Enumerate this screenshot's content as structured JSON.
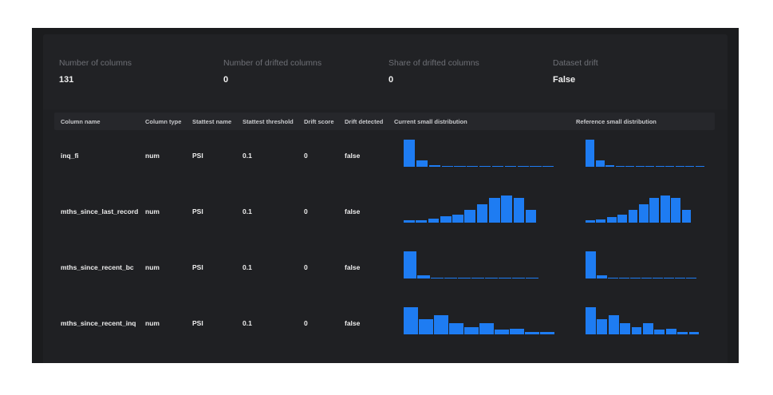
{
  "summary": {
    "metrics": [
      {
        "label": "Number of columns",
        "value": "131"
      },
      {
        "label": "Number of drifted columns",
        "value": "0"
      },
      {
        "label": "Share of drifted columns",
        "value": "0"
      },
      {
        "label": "Dataset drift",
        "value": "False"
      }
    ]
  },
  "table": {
    "headers": [
      "Column name",
      "Column type",
      "Stattest name",
      "Stattest threshold",
      "Drift score",
      "Drift detected",
      "Current small distribution",
      "Reference small distribution"
    ],
    "rows": [
      {
        "name": "inq_fi",
        "type": "num",
        "stattest": "PSI",
        "threshold": "0.1",
        "score": "0",
        "detected": "false",
        "current": [
          1.0,
          0.25,
          0.07,
          0.02,
          0.01,
          0.01,
          0.005,
          0.005,
          0.003,
          0.003,
          0.002,
          0.002
        ],
        "reference": [
          1.0,
          0.25,
          0.07,
          0.02,
          0.01,
          0.01,
          0.005,
          0.005,
          0.003,
          0.003,
          0.002,
          0.002
        ]
      },
      {
        "name": "mths_since_last_record",
        "type": "num",
        "stattest": "PSI",
        "threshold": "0.1",
        "score": "0",
        "detected": "false",
        "current": [
          0.08,
          0.1,
          0.15,
          0.22,
          0.3,
          0.45,
          0.65,
          0.88,
          0.97,
          0.88,
          0.45
        ],
        "reference": [
          0.08,
          0.12,
          0.2,
          0.3,
          0.45,
          0.65,
          0.88,
          0.97,
          0.88,
          0.45
        ]
      },
      {
        "name": "mths_since_recent_bc",
        "type": "num",
        "stattest": "PSI",
        "threshold": "0.1",
        "score": "0",
        "detected": "false",
        "current": [
          1.0,
          0.12,
          0.04,
          0.02,
          0.01,
          0.01,
          0.005,
          0.005,
          0.003,
          0.002
        ],
        "reference": [
          1.0,
          0.12,
          0.04,
          0.02,
          0.01,
          0.01,
          0.005,
          0.005,
          0.003,
          0.002
        ]
      },
      {
        "name": "mths_since_recent_inq",
        "type": "num",
        "stattest": "PSI",
        "threshold": "0.1",
        "score": "0",
        "detected": "false",
        "current": [
          1.0,
          0.55,
          0.72,
          0.4,
          0.28,
          0.4,
          0.18,
          0.2,
          0.1,
          0.08
        ],
        "reference": [
          1.0,
          0.55,
          0.72,
          0.4,
          0.28,
          0.4,
          0.18,
          0.2,
          0.1,
          0.08
        ]
      }
    ]
  },
  "colors": {
    "accent": "#1e7cf2",
    "background": "#1b1c1e"
  }
}
